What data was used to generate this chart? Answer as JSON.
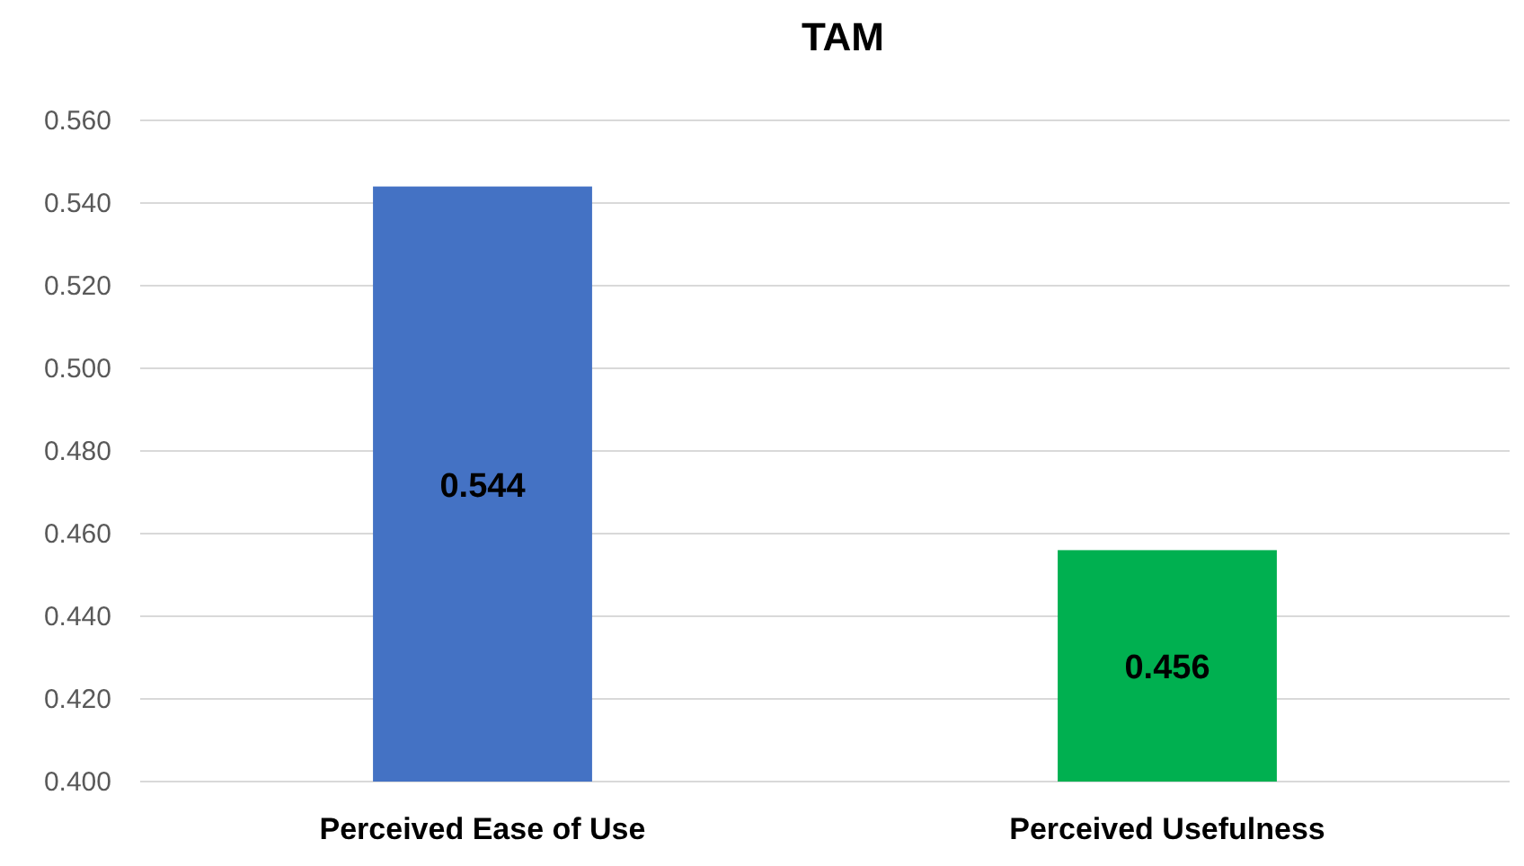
{
  "chart_data": {
    "type": "bar",
    "title": "TAM",
    "categories": [
      "Perceived Ease of Use",
      "Perceived Usefulness"
    ],
    "values": [
      0.544,
      0.456
    ],
    "colors": [
      "#4472c4",
      "#00b050"
    ],
    "ylim": [
      0.4,
      0.56
    ],
    "yticks": [
      {
        "value": 0.4,
        "label": "0.400"
      },
      {
        "value": 0.42,
        "label": "0.420"
      },
      {
        "value": 0.44,
        "label": "0.440"
      },
      {
        "value": 0.46,
        "label": "0.460"
      },
      {
        "value": 0.48,
        "label": "0.480"
      },
      {
        "value": 0.5,
        "label": "0.500"
      },
      {
        "value": 0.52,
        "label": "0.520"
      },
      {
        "value": 0.54,
        "label": "0.540"
      },
      {
        "value": 0.56,
        "label": "0.560"
      }
    ],
    "grid": "y",
    "data_labels": true
  }
}
